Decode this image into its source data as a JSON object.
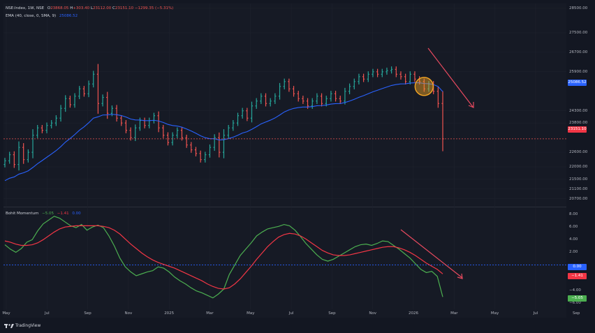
{
  "legend": {
    "symbol": "NSE:Index, 1W, NSE",
    "open_label": "O",
    "open": "23868.05",
    "high_label": "H",
    "high": "+303.40",
    "low_label": "L",
    "low": "23112.00",
    "close_label": "C",
    "close": "23151.10",
    "change": "−1299.35 (−5.31%)",
    "ma_label": "EMA (40, close, 0, SMA, 9)",
    "ma_value": "25086.52",
    "osc_label": "Bohit Momentum",
    "osc_v1": "−5.05",
    "osc_v2": "−1.41",
    "osc_v3": "0.00"
  },
  "badges": {
    "ma_price": "25086.52",
    "last_price": "23151.10",
    "osc_zero": "0.00",
    "osc_red": "−1.41",
    "osc_green": "−5.05"
  },
  "footer": {
    "brand": "TradingView"
  },
  "colors": {
    "up": "#26a69a",
    "down": "#ef5350",
    "ma": "#2962ff",
    "osc_fast": "#4caf50",
    "osc_slow": "#f23645",
    "arrow": "#e84a5f",
    "highlight": "#f5a623",
    "zero_line": "#2962ff"
  },
  "chart_data": [
    {
      "type": "candlestick",
      "title": "",
      "y_ticks": [
        "28500.00",
        "27500.00",
        "26700.00",
        "25900.00",
        "24300.00",
        "23800.00",
        "22600.00",
        "22000.00",
        "21500.00",
        "21100.00",
        "20700.00"
      ],
      "x_ticks": [
        "May",
        "Jul",
        "Sep",
        "Nov",
        "2025",
        "Mar",
        "May",
        "Jul",
        "Sep",
        "Nov",
        "2026",
        "Mar",
        "May",
        "Jul",
        "Sep"
      ],
      "ylim": [
        20400,
        28700
      ],
      "close": [
        22250,
        22500,
        22100,
        22800,
        22300,
        22600,
        23300,
        23600,
        23500,
        23700,
        23800,
        24000,
        24400,
        24800,
        24550,
        24900,
        25200,
        25000,
        25400,
        25800,
        24600,
        24850,
        24200,
        24400,
        24000,
        23800,
        23500,
        23200,
        23600,
        23900,
        23700,
        23900,
        24100,
        23600,
        23300,
        23000,
        23300,
        23500,
        23200,
        22900,
        22700,
        22550,
        22300,
        22500,
        22800,
        23200,
        22600,
        23300,
        23600,
        23800,
        24100,
        24300,
        24000,
        24500,
        24700,
        24900,
        24600,
        24700,
        24900,
        25300,
        25500,
        25200,
        25000,
        24800,
        24700,
        24500,
        24700,
        24900,
        24600,
        24800,
        25000,
        24800,
        24700,
        25100,
        25300,
        25500,
        25700,
        25600,
        25800,
        25900,
        25800,
        25900,
        25950,
        26000,
        25800,
        25700,
        25500,
        25800,
        25600,
        25500,
        25200,
        25400,
        25100,
        24600,
        23151.1
      ],
      "moving_average": {
        "name": "EMA (40, close, 0, SMA, 9)",
        "last": 25086.52
      }
    },
    {
      "type": "line",
      "title": "Bohit Momentum",
      "y_ticks": [
        "8.00",
        "6.00",
        "4.00",
        "2.00",
        "−2.00",
        "−4.00",
        "−6.00"
      ],
      "ylim": [
        -7,
        9
      ],
      "series": [
        {
          "name": "",
          "values": [
            3.2,
            2.5,
            2.0,
            2.6,
            3.6,
            4.0,
            5.4,
            6.5,
            7.1,
            7.7,
            7.4,
            6.8,
            6.2,
            5.9,
            6.4,
            5.5,
            6.0,
            6.3,
            5.9,
            4.6,
            3.0,
            1.1,
            -0.3,
            -1.1,
            -1.7,
            -1.4,
            -1.1,
            -0.9,
            -0.3,
            -0.5,
            -1.1,
            -1.9,
            -2.5,
            -3.0,
            -3.6,
            -4.1,
            -4.4,
            -4.8,
            -5.2,
            -4.6,
            -3.8,
            -1.5,
            0.0,
            1.5,
            2.5,
            3.5,
            4.6,
            5.2,
            5.7,
            5.9,
            6.1,
            6.4,
            6.2,
            5.5,
            4.5,
            3.4,
            2.5,
            1.6,
            0.9,
            0.6,
            0.9,
            1.4,
            1.9,
            2.4,
            2.9,
            3.2,
            3.3,
            3.1,
            3.4,
            3.8,
            3.7,
            3.1,
            2.5,
            1.8,
            1.1,
            0.2,
            -0.7,
            -1.2,
            -1.0,
            -1.8,
            -5.05
          ]
        },
        {
          "name": "",
          "values": [
            3.8,
            3.6,
            3.3,
            3.1,
            3.1,
            3.2,
            3.5,
            4.0,
            4.6,
            5.2,
            5.7,
            6.0,
            6.1,
            6.2,
            6.2,
            6.2,
            6.2,
            6.2,
            6.1,
            5.9,
            5.5,
            4.9,
            4.1,
            3.3,
            2.6,
            1.9,
            1.3,
            0.8,
            0.4,
            0.1,
            -0.2,
            -0.5,
            -0.9,
            -1.3,
            -1.7,
            -2.1,
            -2.5,
            -3.0,
            -3.4,
            -3.7,
            -3.8,
            -3.6,
            -3.0,
            -2.2,
            -1.2,
            -0.2,
            0.9,
            1.9,
            2.9,
            3.7,
            4.4,
            4.8,
            5.0,
            4.9,
            4.6,
            4.1,
            3.5,
            2.9,
            2.3,
            1.9,
            1.6,
            1.5,
            1.5,
            1.6,
            1.8,
            2.0,
            2.2,
            2.4,
            2.6,
            2.8,
            2.9,
            2.9,
            2.7,
            2.4,
            2.0,
            1.5,
            0.9,
            0.3,
            -0.2,
            -0.7,
            -1.41
          ]
        }
      ]
    }
  ]
}
